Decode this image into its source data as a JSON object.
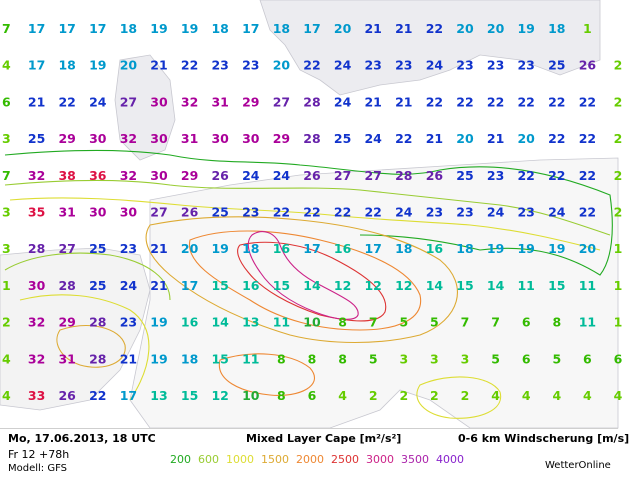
{
  "footer": {
    "date": "Mo, 17.06.2013, 18 UTC",
    "forecast": "Fr 12 +78h",
    "model": "Modell: GFS",
    "title": "Mixed Layer Cape [m²/s²]",
    "title_right": "0-6 km Windscherung [m/s]",
    "credit": "WetterOnline",
    "legend": [
      {
        "label": "200",
        "color": "#22aa22"
      },
      {
        "label": "600",
        "color": "#99cc33"
      },
      {
        "label": "1000",
        "color": "#dddd33"
      },
      {
        "label": "1500",
        "color": "#ddaa33"
      },
      {
        "label": "2000",
        "color": "#ee8833"
      },
      {
        "label": "2500",
        "color": "#dd3333"
      },
      {
        "label": "3000",
        "color": "#cc2288"
      },
      {
        "label": "3500",
        "color": "#aa22aa"
      },
      {
        "label": "4000",
        "color": "#8822cc"
      }
    ]
  },
  "map": {
    "shear_color_scale": [
      {
        "max": 4,
        "color": "#66cc00"
      },
      {
        "max": 8,
        "color": "#33bb00"
      },
      {
        "max": 10,
        "color": "#22aa33"
      },
      {
        "max": 16,
        "color": "#00bb99"
      },
      {
        "max": 20,
        "color": "#0099cc"
      },
      {
        "max": 25,
        "color": "#1133cc"
      },
      {
        "max": 28,
        "color": "#6622aa"
      },
      {
        "max": 32,
        "color": "#aa0099"
      },
      {
        "max": 99,
        "color": "#dd1144"
      }
    ],
    "wind_shear_grid": [
      [
        7,
        17,
        17,
        17,
        18,
        19,
        19,
        18,
        17,
        18,
        17,
        20,
        21,
        21,
        22,
        20,
        20,
        19,
        18,
        1
      ],
      [
        4,
        17,
        18,
        19,
        20,
        21,
        22,
        23,
        23,
        20,
        22,
        24,
        23,
        23,
        24,
        23,
        23,
        23,
        25,
        26,
        2
      ],
      [
        6,
        21,
        22,
        24,
        27,
        30,
        32,
        31,
        29,
        27,
        28,
        24,
        21,
        21,
        22,
        22,
        22,
        22,
        22,
        22,
        2
      ],
      [
        3,
        25,
        29,
        30,
        32,
        30,
        31,
        30,
        30,
        29,
        28,
        25,
        24,
        22,
        21,
        20,
        21,
        20,
        22,
        22,
        2
      ],
      [
        7,
        32,
        38,
        36,
        32,
        30,
        29,
        26,
        24,
        24,
        26,
        27,
        27,
        28,
        26,
        25,
        23,
        22,
        22,
        22,
        2
      ],
      [
        3,
        35,
        31,
        30,
        30,
        27,
        26,
        25,
        23,
        22,
        22,
        22,
        22,
        24,
        23,
        23,
        24,
        23,
        24,
        22,
        2
      ],
      [
        3,
        28,
        27,
        25,
        23,
        21,
        20,
        19,
        18,
        16,
        17,
        16,
        17,
        18,
        16,
        18,
        19,
        19,
        19,
        20,
        1
      ],
      [
        1,
        30,
        28,
        25,
        24,
        21,
        17,
        15,
        16,
        15,
        14,
        12,
        12,
        12,
        14,
        15,
        14,
        11,
        15,
        11,
        1
      ],
      [
        2,
        32,
        29,
        28,
        23,
        19,
        16,
        14,
        13,
        11,
        10,
        8,
        7,
        5,
        5,
        7,
        7,
        6,
        8,
        11,
        1
      ],
      [
        4,
        32,
        31,
        28,
        21,
        19,
        18,
        15,
        11,
        8,
        8,
        8,
        5,
        3,
        3,
        3,
        5,
        6,
        5,
        6,
        6
      ],
      [
        4,
        33,
        26,
        22,
        17,
        13,
        15,
        12,
        10,
        8,
        6,
        4,
        2,
        2,
        2,
        2,
        4,
        4,
        4,
        4,
        4
      ]
    ]
  }
}
